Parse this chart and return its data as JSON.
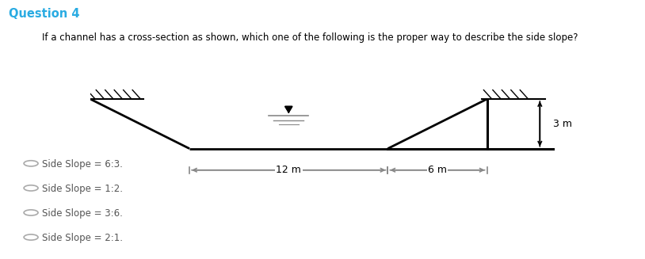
{
  "title": "Question 4",
  "subtitle": "If a channel has a cross-section as shown, which one of the following is the proper way to describe the side slope?",
  "title_color": "#29ABE2",
  "subtitle_color": "#000000",
  "options": [
    "Side Slope = 6:3.",
    "Side Slope = 1:2.",
    "Side Slope = 3:6.",
    "Side Slope = 2:1."
  ],
  "option_color": "#555555",
  "background_color": "#ffffff",
  "label_12m": "12 m",
  "label_6m": "6 m",
  "label_3m": "3 m",
  "arrow_color": "#888888",
  "line_color": "#000000",
  "hatch_color": "#000000",
  "water_line_color": "#888888",
  "dim_line_lw": 1.2,
  "channel_lw": 2.0
}
